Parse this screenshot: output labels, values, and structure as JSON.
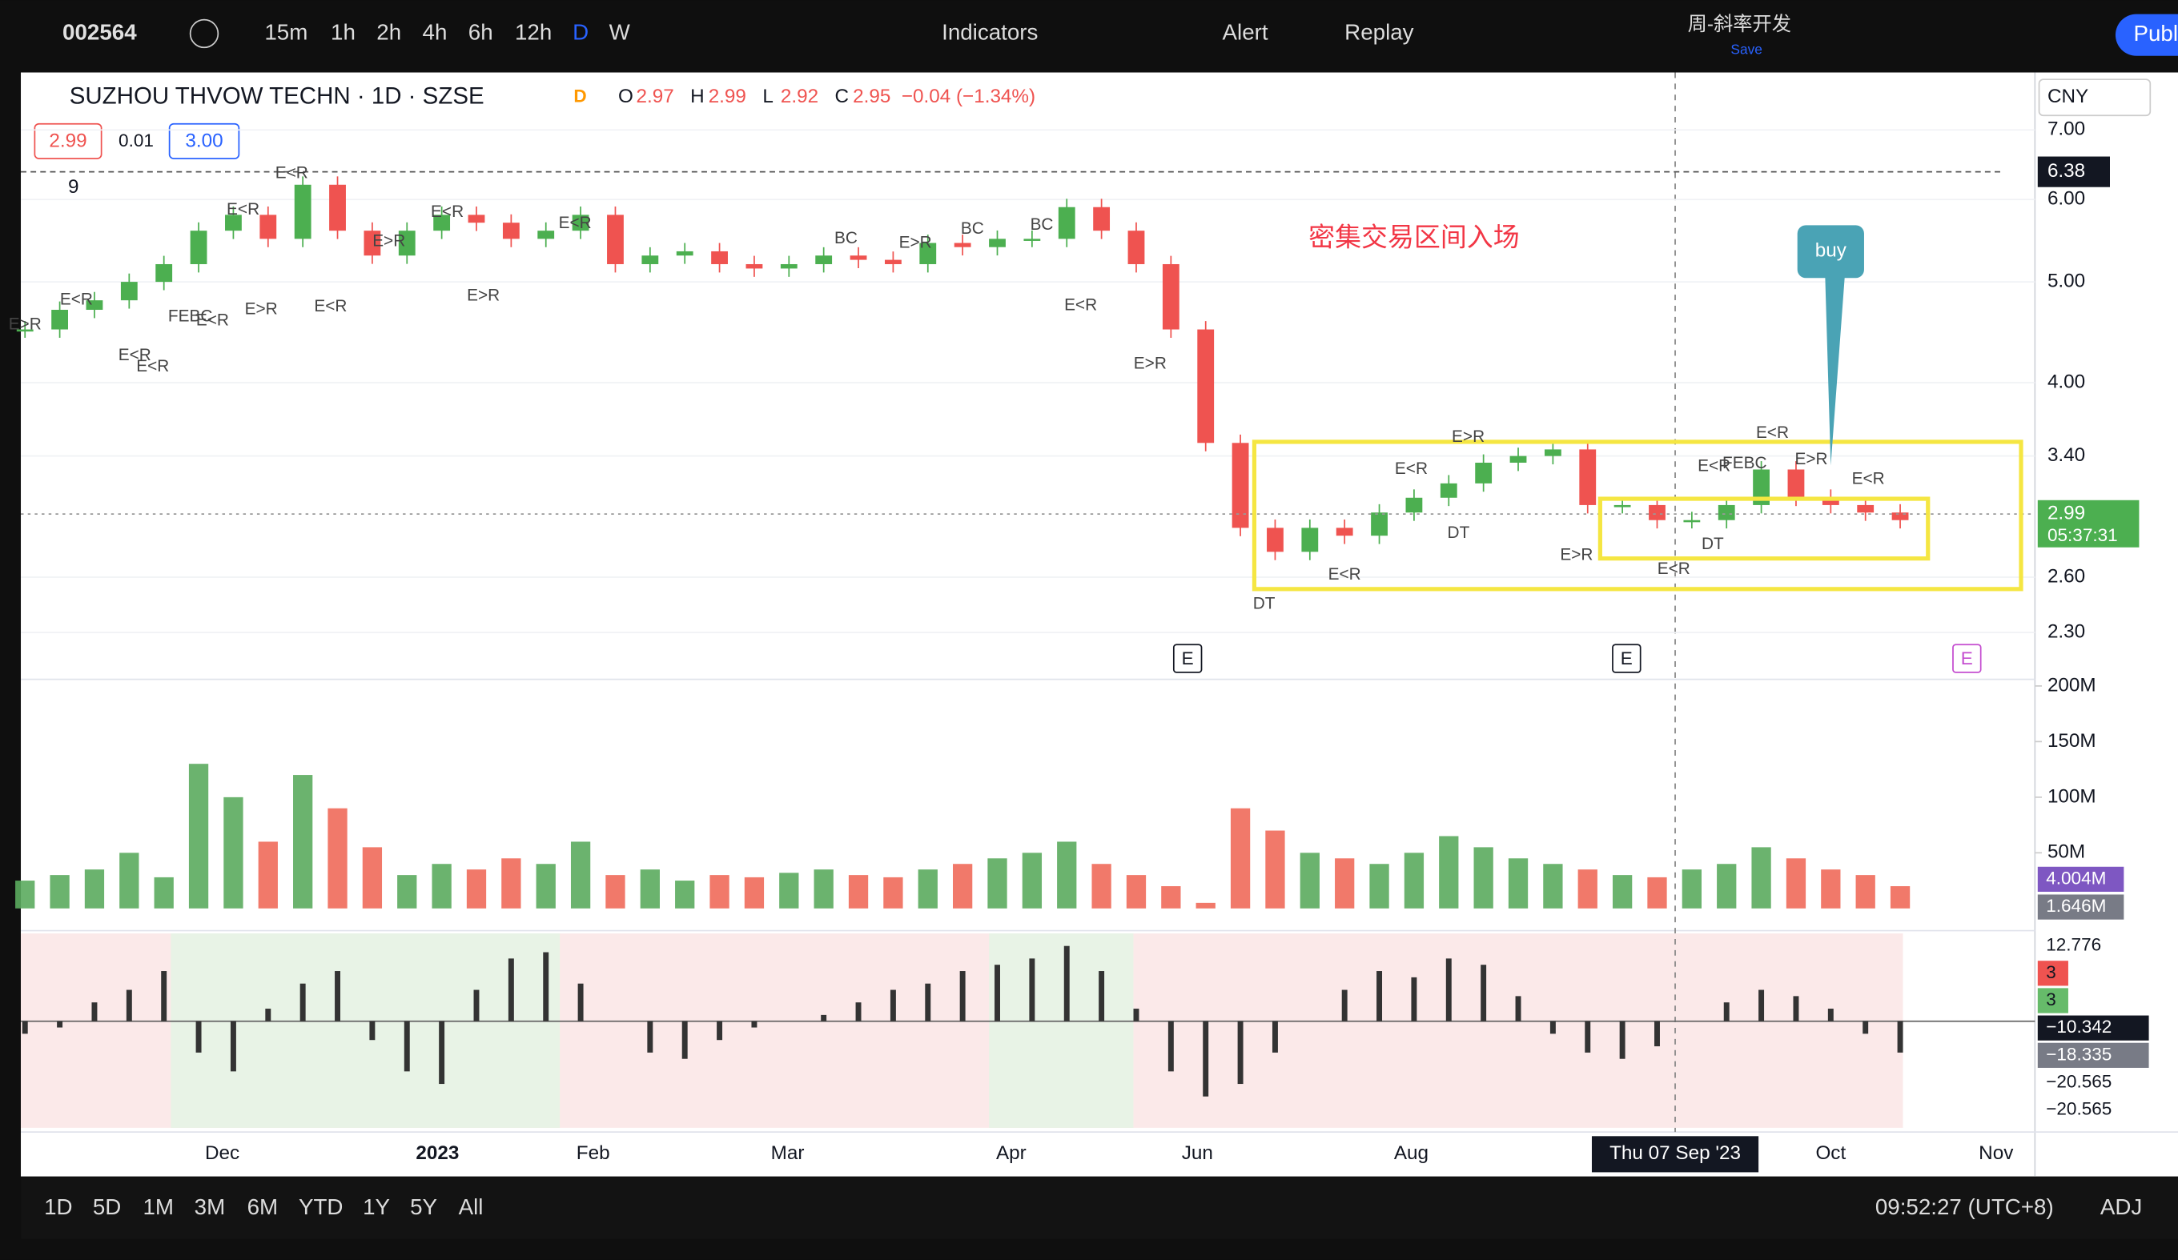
{
  "toolbar": {
    "symbol": "002564",
    "intervals": [
      "15m",
      "1h",
      "2h",
      "4h",
      "6h",
      "12h",
      "D",
      "W"
    ],
    "indicators": "Indicators",
    "alert": "Alert",
    "replay": "Replay",
    "layout_name": "周-斜率开发",
    "save": "Save",
    "publish": "Publ"
  },
  "legend": {
    "title": "SUZHOU THVOW TECHN · 1D · SZSE",
    "status": "D",
    "ohlc": [
      {
        "label": "O",
        "value": 2.97
      },
      {
        "label": "H",
        "value": 2.99
      },
      {
        "label": "L",
        "value": 2.92
      },
      {
        "label": "C",
        "value": 2.95
      }
    ],
    "change": "−0.04 (−1.34%)",
    "bid": 2.99,
    "spread": 0.01,
    "ask": "3.00",
    "indicator_count": 9
  },
  "currency": "CNY",
  "annotation": "密集交易区间入场",
  "callout": "buy",
  "earnings_marker": "E",
  "signals": [
    "E>R",
    "E<R",
    "E<R",
    "E<R",
    "FEBC",
    "E<R",
    "E<R",
    "E>R",
    "E<R",
    "E<R",
    "E>R",
    "E<R",
    "E>R",
    "E<R",
    "BC",
    "E>R",
    "BC",
    "BC",
    "E<R",
    "E>R",
    "DT",
    "E<R",
    "E<R",
    "DT",
    "E>R",
    "E>R",
    "E<R",
    "DT",
    "E<R",
    "FEBC",
    "E<R",
    "E>R",
    "E<R"
  ],
  "chart_data": {
    "type": "candlestick",
    "log_scale": true,
    "up_color": "#4caf50",
    "down_color": "#ef5350",
    "closes": [
      4.5,
      4.7,
      4.8,
      5.0,
      5.2,
      5.6,
      5.8,
      5.5,
      6.2,
      5.6,
      5.3,
      5.6,
      5.8,
      5.7,
      5.5,
      5.6,
      5.8,
      5.2,
      5.3,
      5.35,
      5.2,
      5.15,
      5.2,
      5.3,
      5.25,
      5.2,
      5.45,
      5.4,
      5.5,
      5.5,
      5.9,
      5.6,
      5.2,
      4.5,
      3.5,
      2.9,
      2.75,
      2.9,
      2.85,
      3.0,
      3.1,
      3.2,
      3.35,
      3.4,
      3.45,
      3.05,
      3.05,
      2.95,
      2.95,
      3.05,
      3.3,
      3.1,
      3.05,
      3.0,
      2.95
    ],
    "ylim": [
      2.08,
      7.95
    ],
    "yticks": [
      {
        "value": 7,
        "label": "7.00"
      },
      {
        "value": 6,
        "label": "6.00"
      },
      {
        "value": 5,
        "label": "5.00"
      },
      {
        "value": 4,
        "label": "4.00"
      },
      {
        "value": 3.4,
        "label": "3.40"
      },
      {
        "value": 2.6,
        "label": "2.60"
      },
      {
        "value": 2.3,
        "label": "2.30"
      }
    ],
    "last_price": 2.99,
    "countdown": "05:37:31",
    "line_price": 6.38,
    "months": [
      "Dec",
      "2023",
      "Feb",
      "Mar",
      "Apr",
      "Jun",
      "Aug",
      "Oct",
      "Nov"
    ],
    "crosshair_date": "Thu 07 Sep '23"
  },
  "volume_data": {
    "type": "bar",
    "values": [
      25,
      30,
      35,
      50,
      28,
      130,
      100,
      60,
      120,
      90,
      55,
      30,
      40,
      35,
      45,
      40,
      60,
      30,
      35,
      25,
      30,
      28,
      32,
      35,
      30,
      28,
      35,
      40,
      45,
      50,
      60,
      40,
      30,
      20,
      5,
      90,
      70,
      50,
      45,
      40,
      50,
      65,
      55,
      45,
      40,
      35,
      30,
      28,
      35,
      40,
      55,
      45,
      35,
      30,
      20
    ],
    "ylim": [
      0,
      206
    ],
    "yticks": [
      {
        "value": 50,
        "label": "50M"
      },
      {
        "value": 100,
        "label": "100M"
      },
      {
        "value": 150,
        "label": "150M"
      },
      {
        "value": 200,
        "label": "200M"
      }
    ],
    "last_labels": [
      "4.004M",
      "1.646M"
    ]
  },
  "macd_data": {
    "type": "bar",
    "values": [
      -2,
      -1,
      3,
      5,
      8,
      -5,
      -8,
      2,
      6,
      8,
      -3,
      -8,
      -10,
      5,
      10,
      11,
      6,
      0,
      -5,
      -6,
      -3,
      -1,
      0,
      1,
      3,
      5,
      6,
      8,
      9,
      10,
      12,
      8,
      2,
      -8,
      -12,
      -10,
      -5,
      0,
      5,
      8,
      7,
      10,
      9,
      4,
      -2,
      -5,
      -6,
      -4,
      0,
      3,
      5,
      4,
      2,
      -2,
      -5
    ],
    "ylim": [
      -17,
      14
    ],
    "axis_labels": [
      "12.776",
      "3",
      "3",
      "−10.342",
      "−18.335",
      "−20.565",
      "−20.565"
    ]
  },
  "bottom_bar": {
    "ranges": [
      "1D",
      "5D",
      "1M",
      "3M",
      "6M",
      "YTD",
      "1Y",
      "5Y",
      "All"
    ],
    "clock": "09:52:27 (UTC+8)",
    "adj": "ADJ"
  }
}
